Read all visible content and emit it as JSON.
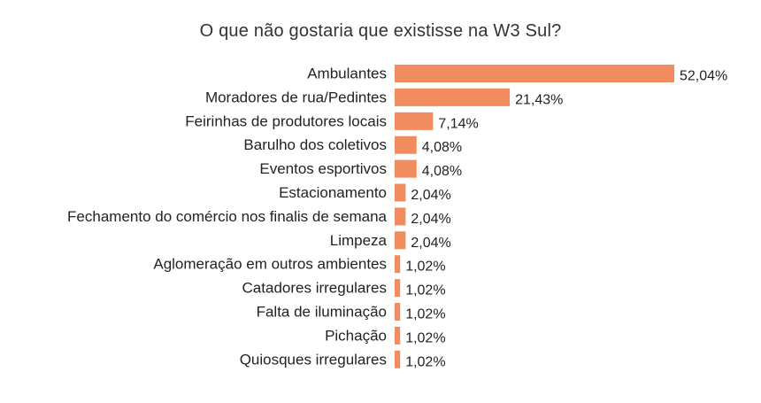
{
  "chart_data": {
    "type": "bar",
    "orientation": "horizontal",
    "title": "O que não gostaria que existisse na W3 Sul?",
    "categories": [
      "Ambulantes",
      "Moradores de rua/Pedintes",
      "Feirinhas de produtores locais",
      "Barulho dos coletivos",
      "Eventos esportivos",
      "Estacionamento",
      "Fechamento do comércio nos finalis de semana",
      "Limpeza",
      "Aglomeração em outros ambientes",
      "Catadores irregulares",
      "Falta de iluminação",
      "Pichação",
      "Quiosques irregulares"
    ],
    "values": [
      52.04,
      21.43,
      7.14,
      4.08,
      4.08,
      2.04,
      2.04,
      2.04,
      1.02,
      1.02,
      1.02,
      1.02,
      1.02
    ],
    "value_labels": [
      "52,04%",
      "21,43%",
      "7,14%",
      "4,08%",
      "4,08%",
      "2,04%",
      "2,04%",
      "2,04%",
      "1,02%",
      "1,02%",
      "1,02%",
      "1,02%",
      "1,02%"
    ],
    "xlim": [
      0,
      52.04
    ],
    "grid": false,
    "bar_color": "#F08C5E"
  }
}
